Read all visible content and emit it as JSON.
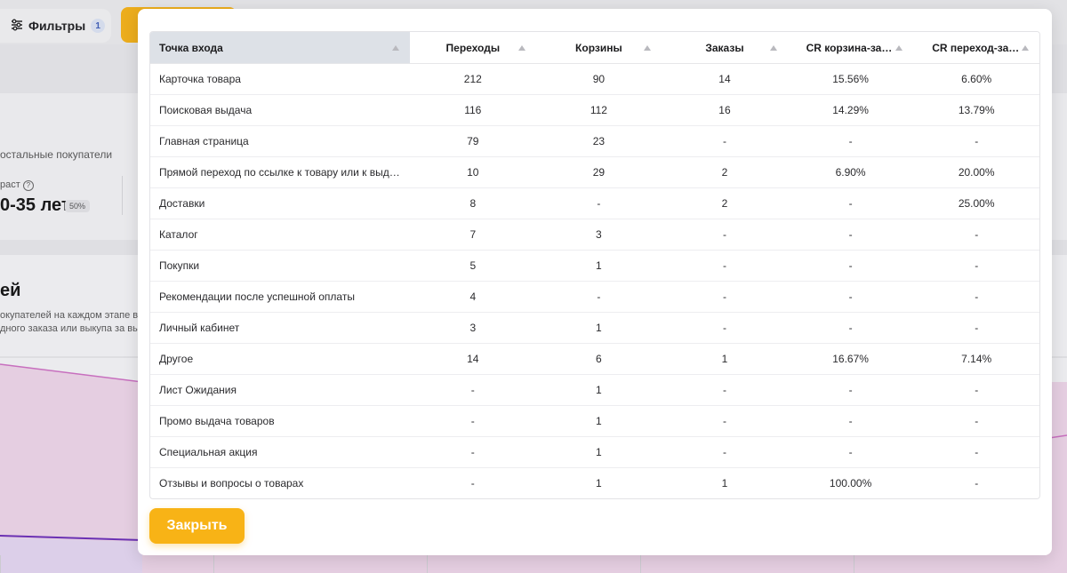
{
  "background": {
    "filters_label": "Фильтры",
    "filters_count": "1",
    "other_buyers": "остальные покупатели",
    "age_label": "раст",
    "age_value": "0-35 лет",
    "age_badge": "50%",
    "section_heading": "ей",
    "section_text_1": "окупателей на каждом этапе в",
    "section_text_2": "дного заказа или выкупа за вы"
  },
  "table": {
    "columns": [
      {
        "label": "Точка входа"
      },
      {
        "label": "Переходы"
      },
      {
        "label": "Корзины"
      },
      {
        "label": "Заказы"
      },
      {
        "label": "CR корзина-заказ"
      },
      {
        "label": "CR переход-заказ"
      }
    ],
    "rows": [
      [
        "Карточка товара",
        "212",
        "90",
        "14",
        "15.56%",
        "6.60%"
      ],
      [
        "Поисковая выдача",
        "116",
        "112",
        "16",
        "14.29%",
        "13.79%"
      ],
      [
        "Главная страница",
        "79",
        "23",
        "-",
        "-",
        "-"
      ],
      [
        "Прямой переход по ссылке к товару или к выдаче",
        "10",
        "29",
        "2",
        "6.90%",
        "20.00%"
      ],
      [
        "Доставки",
        "8",
        "-",
        "2",
        "-",
        "25.00%"
      ],
      [
        "Каталог",
        "7",
        "3",
        "-",
        "-",
        "-"
      ],
      [
        "Покупки",
        "5",
        "1",
        "-",
        "-",
        "-"
      ],
      [
        "Рекомендации после успешной оплаты",
        "4",
        "-",
        "-",
        "-",
        "-"
      ],
      [
        "Личный кабинет",
        "3",
        "1",
        "-",
        "-",
        "-"
      ],
      [
        "Другое",
        "14",
        "6",
        "1",
        "16.67%",
        "7.14%"
      ],
      [
        "Лист Ожидания",
        "-",
        "1",
        "-",
        "-",
        "-"
      ],
      [
        "Промо выдача товаров",
        "-",
        "1",
        "-",
        "-",
        "-"
      ],
      [
        "Специальная акция",
        "-",
        "1",
        "-",
        "-",
        "-"
      ],
      [
        "Отзывы и вопросы о товарах",
        "-",
        "1",
        "1",
        "100.00%",
        "-"
      ]
    ]
  },
  "close_label": "Закрыть"
}
